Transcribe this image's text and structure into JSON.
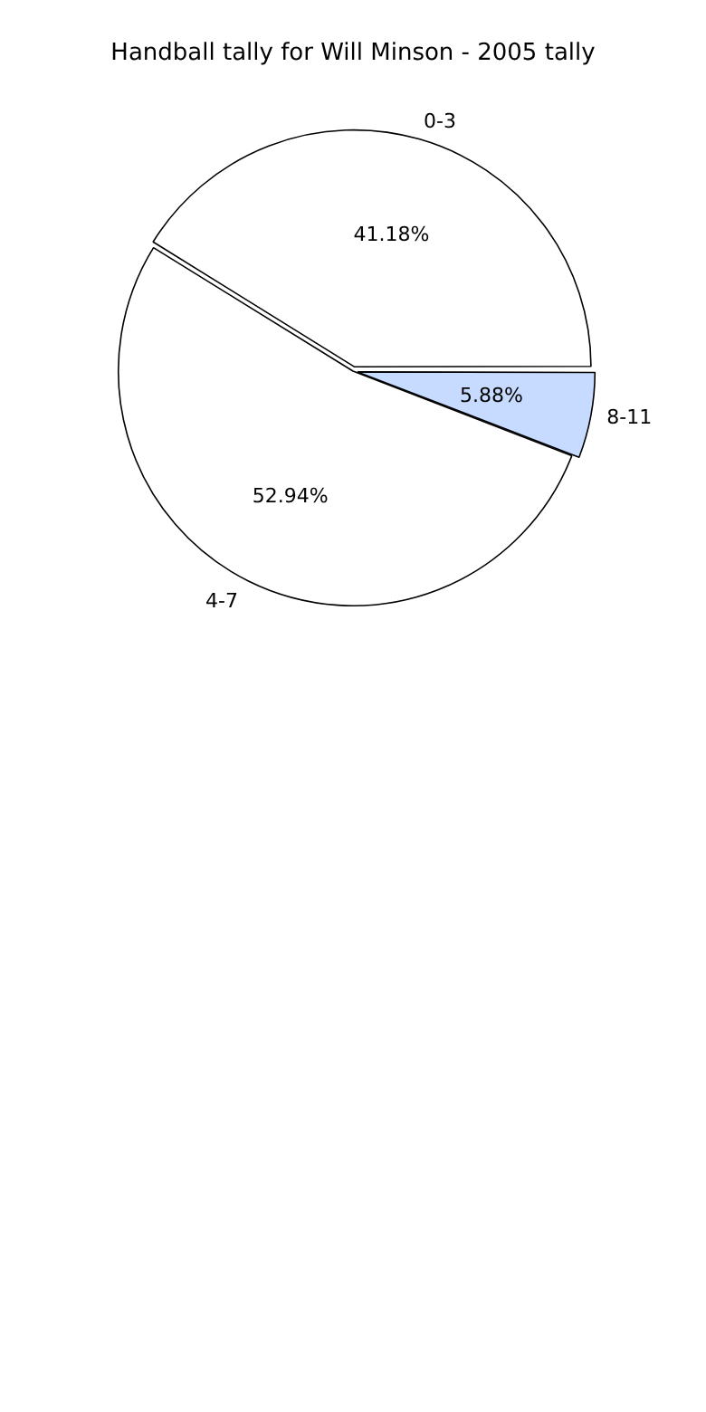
{
  "chart_data": {
    "type": "pie",
    "title": "Handball tally for Will Minson - 2005 tally",
    "categories": [
      "0-3",
      "4-7",
      "8-11"
    ],
    "values": [
      41.18,
      52.94,
      5.88
    ],
    "colors": [
      "#ffffff",
      "#ffffff",
      "#c6dbff"
    ],
    "value_labels": [
      "41.18%",
      "52.94%",
      "5.88%"
    ],
    "legend": false
  }
}
